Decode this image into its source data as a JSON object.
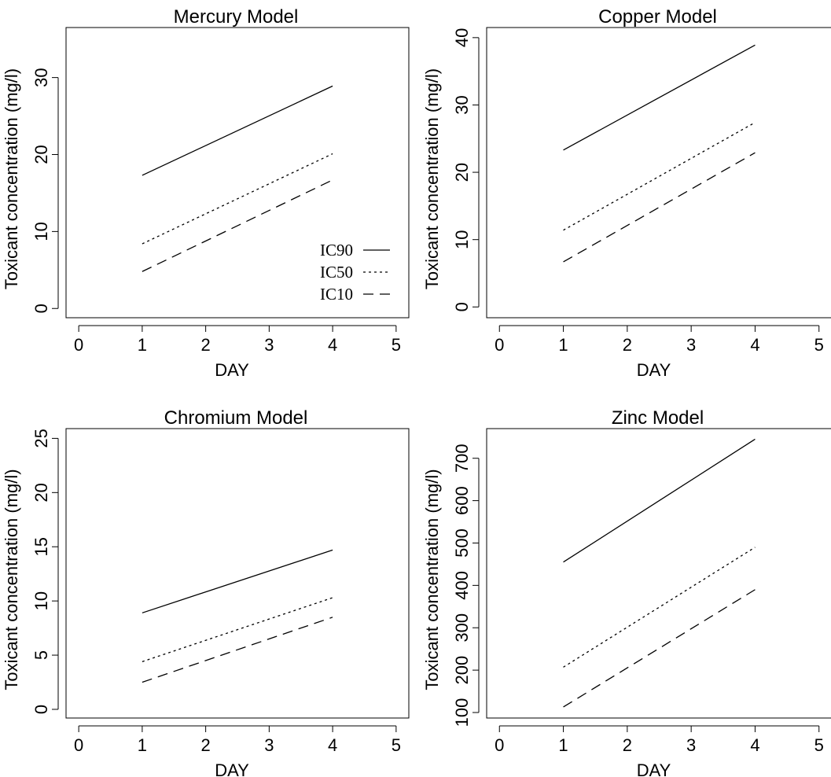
{
  "chart_data": [
    {
      "type": "line",
      "title": "Mercury Model",
      "xlabel": "DAY",
      "ylabel": "Toxicant concentration (mg/l)",
      "xlim": [
        -0.2,
        5.2
      ],
      "ylim": [
        -1.2,
        36.5
      ],
      "xticks": [
        "0",
        "1",
        "2",
        "3",
        "4",
        "5"
      ],
      "yticks": [
        "0",
        "10",
        "20",
        "30"
      ],
      "legend_position": "bottom-right",
      "series": [
        {
          "name": "IC90",
          "x": [
            1,
            4
          ],
          "y": [
            17.3,
            28.9
          ]
        },
        {
          "name": "IC50",
          "x": [
            1,
            4
          ],
          "y": [
            8.4,
            20.1
          ]
        },
        {
          "name": "IC10",
          "x": [
            1,
            4
          ],
          "y": [
            4.8,
            16.7
          ]
        }
      ]
    },
    {
      "type": "line",
      "title": "Copper Model",
      "xlabel": "DAY",
      "ylabel": "Toxicant concentration (mg/l)",
      "xlim": [
        -0.2,
        5.2
      ],
      "ylim": [
        -1.6,
        41.5
      ],
      "xticks": [
        "0",
        "1",
        "2",
        "3",
        "4",
        "5"
      ],
      "yticks": [
        "0",
        "10",
        "20",
        "30",
        "40"
      ],
      "series": [
        {
          "name": "IC90",
          "x": [
            1,
            4
          ],
          "y": [
            23.3,
            38.9
          ]
        },
        {
          "name": "IC50",
          "x": [
            1,
            4
          ],
          "y": [
            11.4,
            27.4
          ]
        },
        {
          "name": "IC10",
          "x": [
            1,
            4
          ],
          "y": [
            6.7,
            22.9
          ]
        }
      ]
    },
    {
      "type": "line",
      "title": "Chromium Model",
      "xlabel": "DAY",
      "ylabel": "Toxicant concentration (mg/l)",
      "xlim": [
        -0.2,
        5.2
      ],
      "ylim": [
        -0.8,
        25.9
      ],
      "xticks": [
        "0",
        "1",
        "2",
        "3",
        "4",
        "5"
      ],
      "yticks": [
        "0",
        "5",
        "10",
        "15",
        "20",
        "25"
      ],
      "series": [
        {
          "name": "IC90",
          "x": [
            1,
            4
          ],
          "y": [
            8.9,
            14.7
          ]
        },
        {
          "name": "IC50",
          "x": [
            1,
            4
          ],
          "y": [
            4.4,
            10.3
          ]
        },
        {
          "name": "IC10",
          "x": [
            1,
            4
          ],
          "y": [
            2.5,
            8.5
          ]
        }
      ]
    },
    {
      "type": "line",
      "title": "Zinc Model",
      "xlabel": "DAY",
      "ylabel": "Toxicant concentration (mg/l)",
      "xlim": [
        -0.2,
        5.2
      ],
      "ylim": [
        87,
        770
      ],
      "xticks": [
        "0",
        "1",
        "2",
        "3",
        "4",
        "5"
      ],
      "yticks": [
        "100",
        "200",
        "300",
        "400",
        "500",
        "600",
        "700"
      ],
      "series": [
        {
          "name": "IC90",
          "x": [
            1,
            4
          ],
          "y": [
            455,
            745
          ]
        },
        {
          "name": "IC50",
          "x": [
            1,
            4
          ],
          "y": [
            207,
            490
          ]
        },
        {
          "name": "IC10",
          "x": [
            1,
            4
          ],
          "y": [
            113,
            390
          ]
        }
      ]
    }
  ],
  "legend": {
    "entries": [
      "IC90",
      "IC50",
      "IC10"
    ]
  },
  "style": {
    "line_color": "#000000",
    "background": "#ffffff",
    "line_styles": {
      "IC90": "solid",
      "IC50": "dotted",
      "IC10": "dashed"
    }
  }
}
